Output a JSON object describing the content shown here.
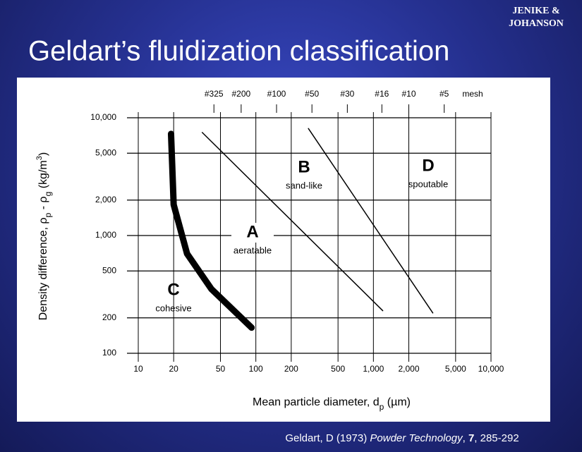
{
  "header": {
    "title": "Geldart’s fluidization classification",
    "logo": [
      "JENIKE &",
      "JOHANSON"
    ]
  },
  "chart_data": {
    "type": "line",
    "xscale": "log",
    "yscale": "log",
    "grid": true,
    "xlim": [
      10,
      10000
    ],
    "ylim": [
      100,
      10000
    ],
    "xticks": [
      10,
      20,
      50,
      100,
      200,
      500,
      {
        "value": 1000,
        "label": "1,000"
      },
      {
        "value": 2000,
        "label": "2,000"
      },
      {
        "value": 5000,
        "label": "5,000"
      },
      {
        "value": 10000,
        "label": "10,000"
      }
    ],
    "yticks": [
      100,
      200,
      500,
      {
        "value": 1000,
        "label": "1,000"
      },
      {
        "value": 2000,
        "label": "2,000"
      },
      {
        "value": 5000,
        "label": "5,000"
      },
      {
        "value": 10000,
        "label": "10,000"
      }
    ],
    "top_ticks": [
      {
        "value": 44,
        "label": "#325"
      },
      {
        "value": 75,
        "label": "#200"
      },
      {
        "value": 150,
        "label": "#100"
      },
      {
        "value": 300,
        "label": "#50"
      },
      {
        "value": 600,
        "label": "#30"
      },
      {
        "value": 1180,
        "label": "#16"
      },
      {
        "value": 2000,
        "label": "#10"
      },
      {
        "value": 4000,
        "label": "#5"
      }
    ],
    "top_axis_label": "mesh",
    "xlabel_parts": [
      "Mean particle diameter, d",
      "p",
      "  (µm)"
    ],
    "ylabel_parts": [
      "Density difference, ρ",
      "p",
      " - ρ",
      "g",
      "  (kg/m",
      "3",
      ")"
    ],
    "series": [
      {
        "color": "#000000",
        "width": 9,
        "x": [
          19,
          20,
          26,
          42,
          92
        ],
        "values": [
          7300,
          1830,
          700,
          350,
          165
        ]
      },
      {
        "color": "#000000",
        "width": 1.5,
        "x": [
          35,
          1200
        ],
        "values": [
          7500,
          230
        ]
      },
      {
        "color": "#000000",
        "width": 1.5,
        "x": [
          280,
          3200
        ],
        "values": [
          8100,
          220
        ]
      }
    ],
    "annotations": [
      {
        "letter": "A",
        "text": "aeratable"
      },
      {
        "letter": "B",
        "text": "sand-like"
      },
      {
        "letter": "C",
        "text": "cohesive"
      },
      {
        "letter": "D",
        "text": "spoutable"
      }
    ]
  },
  "footer": {
    "citation": [
      "Geldart, D (1973) ",
      "Powder Technology",
      ", ",
      "7",
      ", 285-292"
    ]
  }
}
